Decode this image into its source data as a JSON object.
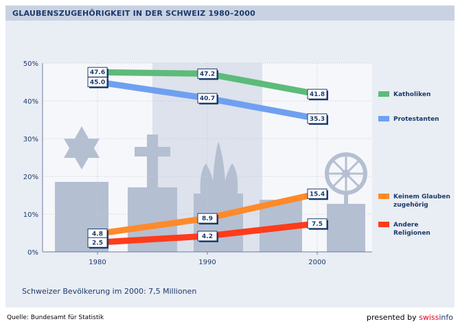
{
  "title": "GLAUBENSZUGEHÖRIGKEIT IN DER SCHWEIZ 1980–2000",
  "note": "Schweizer Bevölkerung im 2000: 7,5 Millionen",
  "source": "Quelle: Bundesamt für Statistik",
  "credit": {
    "prefix": "presented by ",
    "brand_a": "swiss",
    "brand_b": "info"
  },
  "chart_data": {
    "type": "line",
    "x": [
      "1980",
      "1990",
      "2000"
    ],
    "ylim": [
      0,
      50
    ],
    "yticks": [
      "0%",
      "10%",
      "20%",
      "30%",
      "40%",
      "50%"
    ],
    "grid": true,
    "legend_position": "right",
    "series": [
      {
        "name": "Katholiken",
        "values": [
          47.6,
          47.2,
          41.8
        ],
        "labels": [
          "47.6",
          "47.2",
          "41.8"
        ],
        "color": "#5dbb7a",
        "legend": [
          "Katholiken"
        ]
      },
      {
        "name": "Protestanten",
        "values": [
          45.0,
          40.7,
          35.3
        ],
        "labels": [
          "45.0",
          "40.7",
          "35.3"
        ],
        "color": "#6fa0f0",
        "legend": [
          "Protestanten"
        ]
      },
      {
        "name": "Keinem Glauben zugehörig",
        "values": [
          4.8,
          8.9,
          15.4
        ],
        "labels": [
          "4.8",
          "8.9",
          "15.4"
        ],
        "color": "#ff8a2a",
        "legend": [
          "Keinem Glauben",
          "zugehörig"
        ]
      },
      {
        "name": "Andere Religionen",
        "values": [
          2.5,
          4.2,
          7.5
        ],
        "labels": [
          "2.5",
          "4.2",
          "7.5"
        ],
        "color": "#ff3b1a",
        "legend": [
          "Andere",
          "Religionen"
        ]
      }
    ]
  },
  "colors": {
    "panel_bg": "#e9edf4",
    "plot_bg": "#f6f7fa",
    "band_bg": "#dde2ec",
    "silhouettes": "#b4bfd2"
  }
}
